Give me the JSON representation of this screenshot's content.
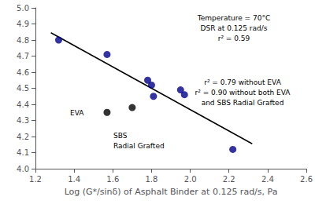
{
  "chart_data": {
    "type": "scatter",
    "xlabel": "Log (G*/sinδ) of Asphalt Binder at 0.125 rad/s, Pa",
    "series": [
      {
        "type": "scatter",
        "x": [
          1.32,
          1.57,
          1.57,
          1.7,
          1.78,
          1.8,
          1.81,
          1.95,
          1.97,
          2.22
        ],
        "values": [
          4.8,
          4.71,
          4.35,
          4.38,
          4.55,
          4.52,
          4.45,
          4.49,
          4.46,
          4.12
        ],
        "colors": [
          "#00008B",
          "#00008B",
          "#000000",
          "#000000",
          "#00008B",
          "#00008B",
          "#00008B",
          "#00008B",
          "#00008B",
          "#00008B"
        ]
      },
      {
        "type": "line",
        "x": [
          1.28,
          2.32
        ],
        "values": [
          4.845,
          4.155
        ],
        "color": "black"
      }
    ],
    "xlim": [
      1.2,
      2.6
    ],
    "xticks": [
      1.2,
      1.4,
      1.6,
      1.8,
      {
        "value": 2,
        "label": "2.0"
      },
      2.2,
      2.4,
      2.6
    ],
    "ylim": [
      4.0,
      5.0
    ],
    "yticks": [
      {
        "value": 4,
        "label": "4.0"
      },
      4.1,
      4.2,
      4.3,
      4.4,
      4.5,
      4.6,
      4.7,
      4.8,
      4.9,
      {
        "value": 5,
        "label": "5.0"
      }
    ],
    "grid": false,
    "annotations": [
      "EVA",
      "SBS\nRadial Grafted",
      "Temperature = 70°C\nDSR at 0.125 rad/s\nr² = 0.59",
      "r² = 0.79 without EVA\nr² = 0.90 without both EVA\nand SBS Radial Grafted"
    ]
  }
}
